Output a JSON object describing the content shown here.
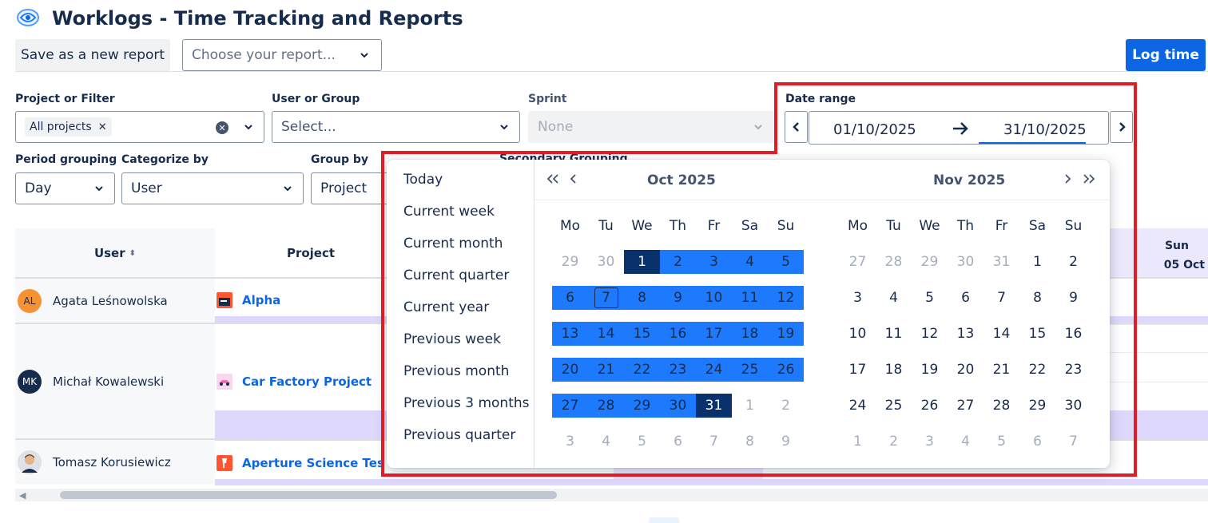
{
  "header": {
    "title": "Worklogs - Time Tracking and Reports",
    "save_label": "Save as a new report",
    "report_placeholder": "Choose your report...",
    "log_time_label": "Log time"
  },
  "filters": {
    "project_label": "Project or Filter",
    "project_tag": "All projects",
    "user_label": "User or Group",
    "user_placeholder": "Select...",
    "sprint_label": "Sprint",
    "sprint_value": "None",
    "date_range_label": "Date range",
    "date_from": "01/10/2025",
    "date_to": "31/10/2025",
    "period_label": "Period grouping",
    "period_value": "Day",
    "categorize_label": "Categorize by",
    "categorize_value": "User",
    "group_label": "Group by",
    "group_value": "Project",
    "secondary_label": "Secondary Grouping"
  },
  "table": {
    "col_user": "User",
    "col_project": "Project",
    "col_sun_day": "Sun",
    "col_sun_date": "05 Oct",
    "rows": [
      {
        "initials": "AL",
        "user": "Agata Leśnowolska",
        "project": "Alpha",
        "avatar_color": "#f79232"
      },
      {
        "initials": "MK",
        "user": "Michał Kowalewski",
        "project": "Car Factory Project",
        "avatar_color": "#172b4d"
      },
      {
        "initials": "",
        "user": "Tomasz Korusiewicz",
        "project": "Aperture Science Testing",
        "avatar_color": "#dfe1e6"
      }
    ]
  },
  "datepicker": {
    "presets": [
      "Today",
      "Current week",
      "Current month",
      "Current quarter",
      "Current year",
      "Previous week",
      "Previous month",
      "Previous 3 months",
      "Previous quarter"
    ],
    "left_month": "Oct  2025",
    "right_month": "Nov  2025",
    "weekdays": [
      "Mo",
      "Tu",
      "We",
      "Th",
      "Fr",
      "Sa",
      "Su"
    ],
    "left_days": [
      [
        "29",
        "30",
        "1",
        "2",
        "3",
        "4",
        "5"
      ],
      [
        "6",
        "7",
        "8",
        "9",
        "10",
        "11",
        "12"
      ],
      [
        "13",
        "14",
        "15",
        "16",
        "17",
        "18",
        "19"
      ],
      [
        "20",
        "21",
        "22",
        "23",
        "24",
        "25",
        "26"
      ],
      [
        "27",
        "28",
        "29",
        "30",
        "31",
        "1",
        "2"
      ],
      [
        "3",
        "4",
        "5",
        "6",
        "7",
        "8",
        "9"
      ]
    ],
    "right_days": [
      [
        "27",
        "28",
        "29",
        "30",
        "31",
        "1",
        "2"
      ],
      [
        "3",
        "4",
        "5",
        "6",
        "7",
        "8",
        "9"
      ],
      [
        "10",
        "11",
        "12",
        "13",
        "14",
        "15",
        "16"
      ],
      [
        "17",
        "18",
        "19",
        "20",
        "21",
        "22",
        "23"
      ],
      [
        "24",
        "25",
        "26",
        "27",
        "28",
        "29",
        "30"
      ],
      [
        "1",
        "2",
        "3",
        "4",
        "5",
        "6",
        "7"
      ]
    ]
  },
  "colors": {
    "accent": "#0c66e4",
    "range": "#1d7afc",
    "range_edge": "#09326c",
    "highlight": "#e31b23"
  }
}
